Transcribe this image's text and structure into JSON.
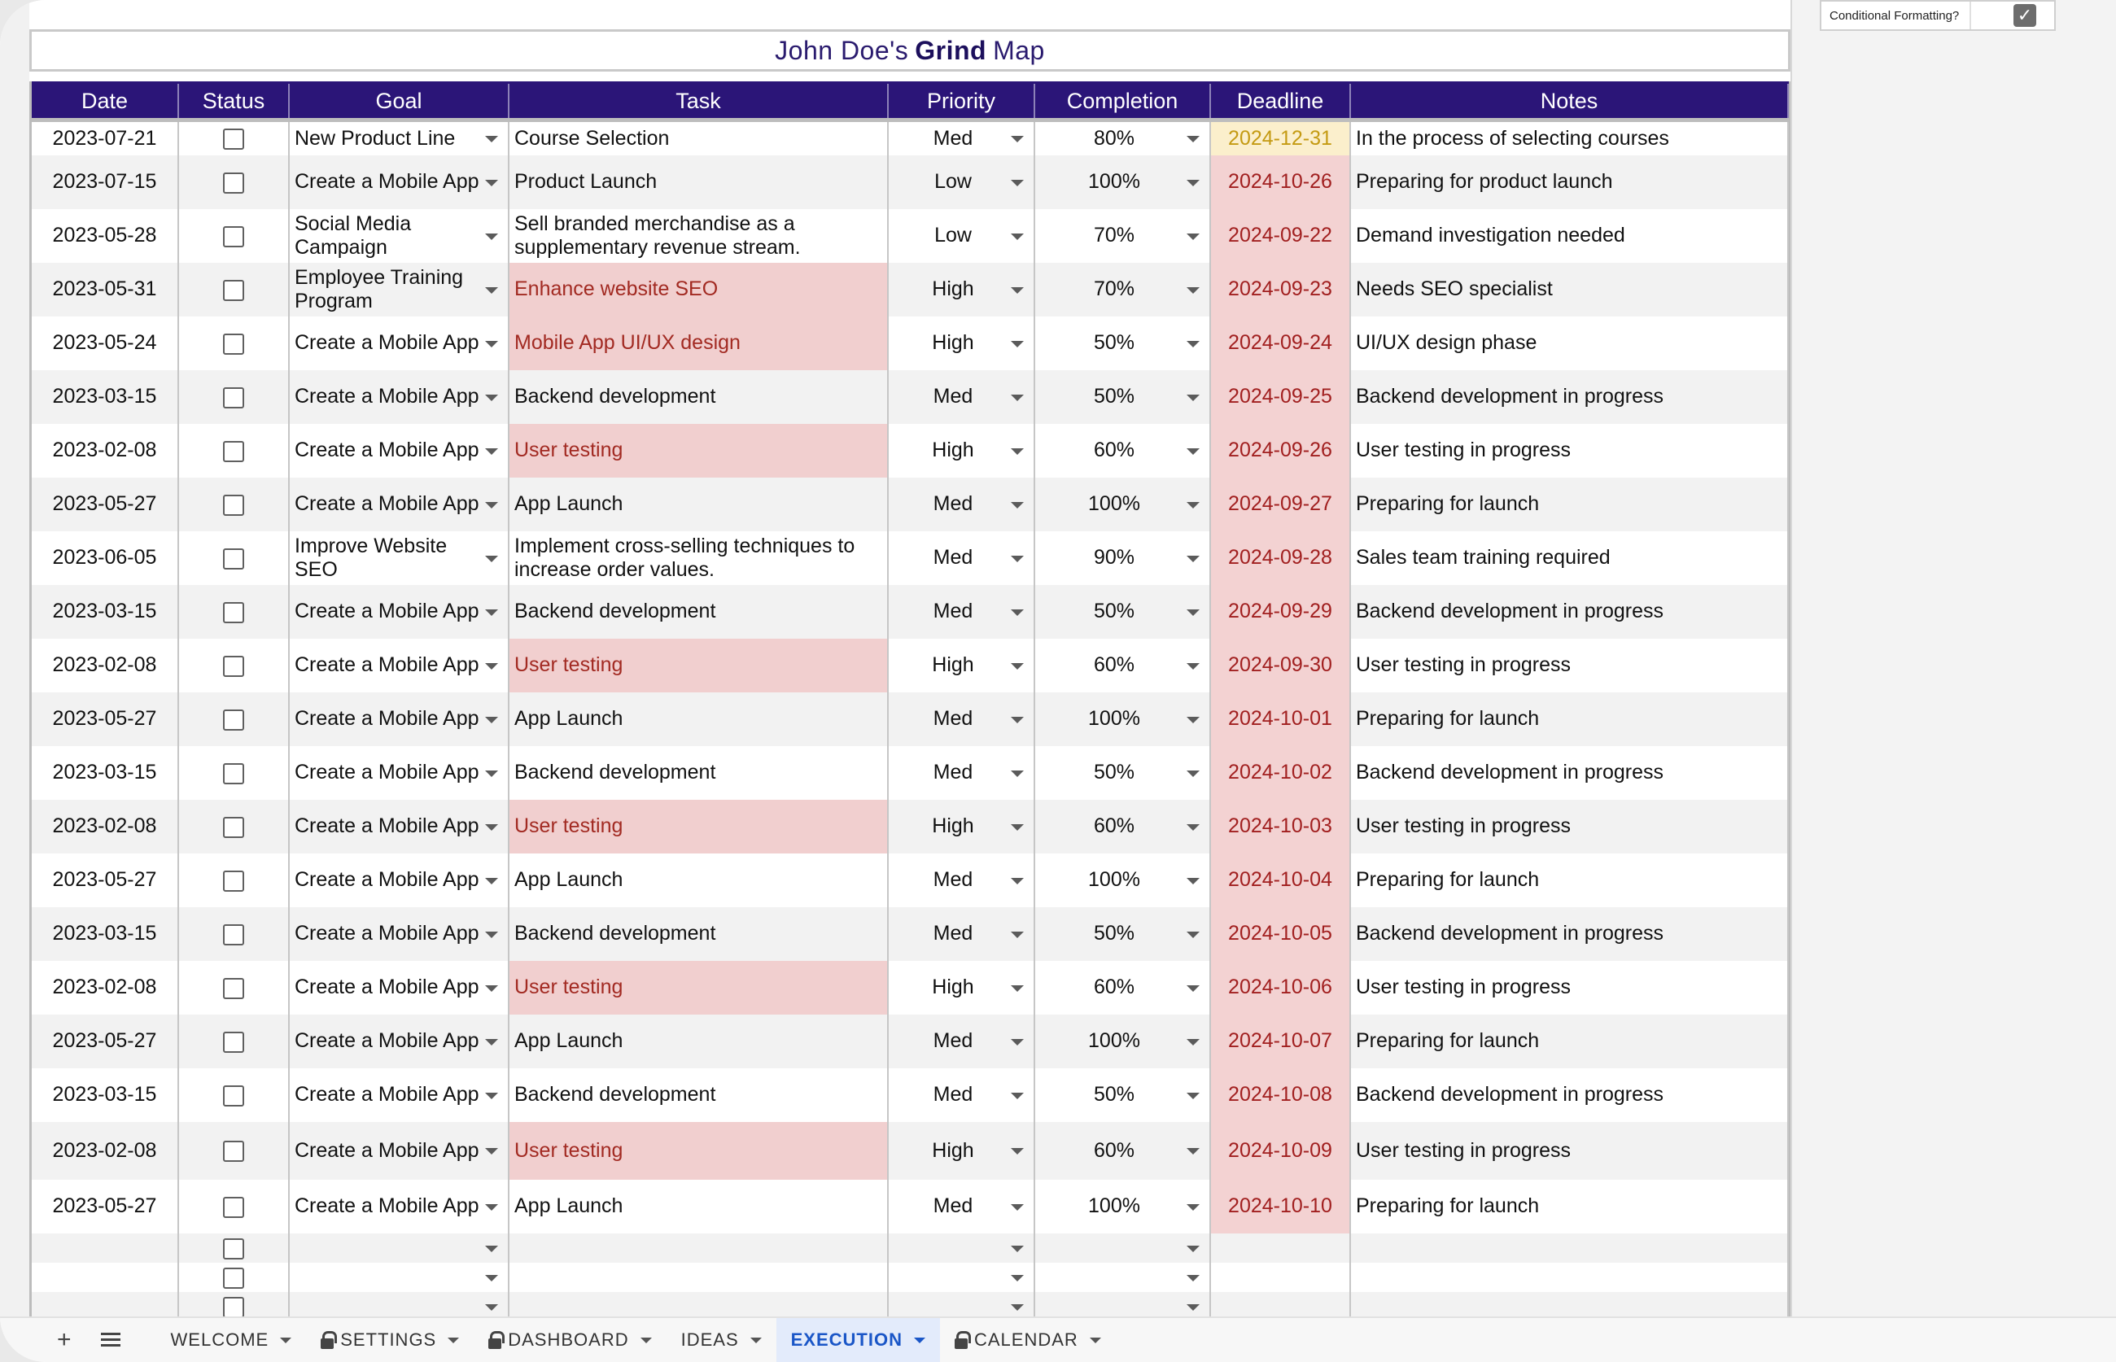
{
  "cf_toggle": {
    "label": "Conditional Formatting?",
    "checked": true
  },
  "title": {
    "prefix": "John Doe's",
    "bold": "Grind",
    "suffix": "Map"
  },
  "columns": [
    "Date",
    "Status",
    "Goal",
    "Task",
    "Priority",
    "Completion",
    "Deadline",
    "Notes"
  ],
  "rows": [
    {
      "date": "2023-07-21",
      "goal": "New Product Line",
      "task": "Course Selection",
      "priority": "Med",
      "completion": "80%",
      "deadline": "2024-12-31",
      "notes": "In the process of selecting courses"
    },
    {
      "date": "2023-07-15",
      "goal": "Create a Mobile App",
      "task": "Product Launch",
      "priority": "Low",
      "completion": "100%",
      "deadline": "2024-10-26",
      "notes": "Preparing for product launch"
    },
    {
      "date": "2023-05-28",
      "goal": "Social Media Campaign",
      "task": "Sell branded merchandise as a supplementary revenue stream.",
      "priority": "Low",
      "completion": "70%",
      "deadline": "2024-09-22",
      "notes": "Demand investigation needed"
    },
    {
      "date": "2023-05-31",
      "goal": "Employee Training Program",
      "task": "Enhance website SEO",
      "priority": "High",
      "completion": "70%",
      "deadline": "2024-09-23",
      "notes": "Needs SEO specialist"
    },
    {
      "date": "2023-05-24",
      "goal": "Create a Mobile App",
      "task": "Mobile App UI/UX design",
      "priority": "High",
      "completion": "50%",
      "deadline": "2024-09-24",
      "notes": "UI/UX design phase"
    },
    {
      "date": "2023-03-15",
      "goal": "Create a Mobile App",
      "task": "Backend development",
      "priority": "Med",
      "completion": "50%",
      "deadline": "2024-09-25",
      "notes": "Backend development in progress"
    },
    {
      "date": "2023-02-08",
      "goal": "Create a Mobile App",
      "task": "User testing",
      "priority": "High",
      "completion": "60%",
      "deadline": "2024-09-26",
      "notes": "User testing in progress"
    },
    {
      "date": "2023-05-27",
      "goal": "Create a Mobile App",
      "task": "App Launch",
      "priority": "Med",
      "completion": "100%",
      "deadline": "2024-09-27",
      "notes": "Preparing for launch"
    },
    {
      "date": "2023-06-05",
      "goal": "Improve Website SEO",
      "task": "Implement cross-selling techniques to increase order values.",
      "priority": "Med",
      "completion": "90%",
      "deadline": "2024-09-28",
      "notes": "Sales team training required"
    },
    {
      "date": "2023-03-15",
      "goal": "Create a Mobile App",
      "task": "Backend development",
      "priority": "Med",
      "completion": "50%",
      "deadline": "2024-09-29",
      "notes": "Backend development in progress"
    },
    {
      "date": "2023-02-08",
      "goal": "Create a Mobile App",
      "task": "User testing",
      "priority": "High",
      "completion": "60%",
      "deadline": "2024-09-30",
      "notes": "User testing in progress"
    },
    {
      "date": "2023-05-27",
      "goal": "Create a Mobile App",
      "task": "App Launch",
      "priority": "Med",
      "completion": "100%",
      "deadline": "2024-10-01",
      "notes": "Preparing for launch"
    },
    {
      "date": "2023-03-15",
      "goal": "Create a Mobile App",
      "task": "Backend development",
      "priority": "Med",
      "completion": "50%",
      "deadline": "2024-10-02",
      "notes": "Backend development in progress"
    },
    {
      "date": "2023-02-08",
      "goal": "Create a Mobile App",
      "task": "User testing",
      "priority": "High",
      "completion": "60%",
      "deadline": "2024-10-03",
      "notes": "User testing in progress"
    },
    {
      "date": "2023-05-27",
      "goal": "Create a Mobile App",
      "task": "App Launch",
      "priority": "Med",
      "completion": "100%",
      "deadline": "2024-10-04",
      "notes": "Preparing for launch"
    },
    {
      "date": "2023-03-15",
      "goal": "Create a Mobile App",
      "task": "Backend development",
      "priority": "Med",
      "completion": "50%",
      "deadline": "2024-10-05",
      "notes": "Backend development in progress"
    },
    {
      "date": "2023-02-08",
      "goal": "Create a Mobile App",
      "task": "User testing",
      "priority": "High",
      "completion": "60%",
      "deadline": "2024-10-06",
      "notes": "User testing in progress"
    },
    {
      "date": "2023-05-27",
      "goal": "Create a Mobile App",
      "task": "App Launch",
      "priority": "Med",
      "completion": "100%",
      "deadline": "2024-10-07",
      "notes": "Preparing for launch"
    },
    {
      "date": "2023-03-15",
      "goal": "Create a Mobile App",
      "task": "Backend development",
      "priority": "Med",
      "completion": "50%",
      "deadline": "2024-10-08",
      "notes": "Backend development in progress"
    },
    {
      "date": "2023-02-08",
      "goal": "Create a Mobile App",
      "task": "User testing",
      "priority": "High",
      "completion": "60%",
      "deadline": "2024-10-09",
      "notes": "User testing in progress"
    },
    {
      "date": "2023-05-27",
      "goal": "Create a Mobile App",
      "task": "App Launch",
      "priority": "Med",
      "completion": "100%",
      "deadline": "2024-10-10",
      "notes": "Preparing for launch"
    }
  ],
  "empty_rows": 3,
  "tabs": {
    "add_label": "+",
    "items": [
      {
        "label": "WELCOME",
        "locked": false,
        "active": false
      },
      {
        "label": "SETTINGS",
        "locked": true,
        "active": false
      },
      {
        "label": "DASHBOARD",
        "locked": true,
        "active": false
      },
      {
        "label": "IDEAS",
        "locked": false,
        "active": false
      },
      {
        "label": "EXECUTION",
        "locked": false,
        "active": true
      },
      {
        "label": "CALENDAR",
        "locked": true,
        "active": false
      }
    ]
  },
  "colors": {
    "header_bg": "#2b1578",
    "title_text": "#2a1b6e",
    "overdue_bg": "#f3d2d2",
    "overdue_text": "#a11f1f",
    "upcoming_bg": "#fbefcc",
    "upcoming_text": "#c49a12",
    "active_tab": "#1a56c7"
  }
}
